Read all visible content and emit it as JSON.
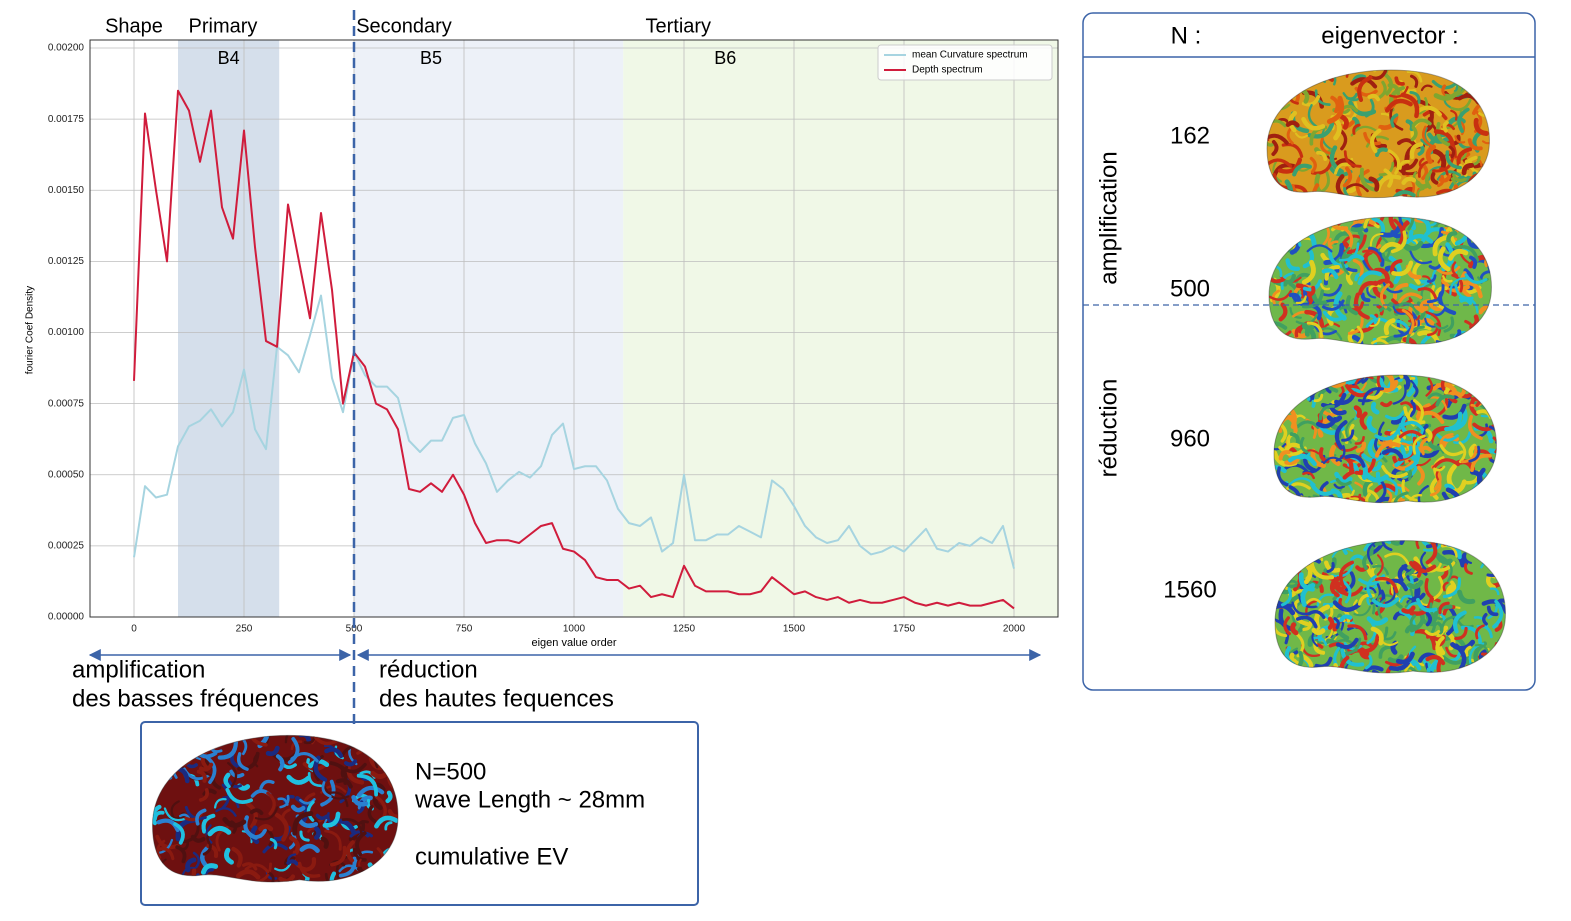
{
  "chart_data": {
    "type": "line",
    "xlabel": "eigen value order",
    "ylabel": "fourier Coef Density",
    "x": [
      0,
      25,
      50,
      75,
      100,
      125,
      150,
      175,
      200,
      225,
      250,
      275,
      300,
      325,
      350,
      375,
      400,
      425,
      450,
      475,
      500,
      525,
      550,
      575,
      600,
      625,
      650,
      675,
      700,
      725,
      750,
      775,
      800,
      825,
      850,
      875,
      900,
      925,
      950,
      975,
      1000,
      1025,
      1050,
      1075,
      1100,
      1125,
      1150,
      1175,
      1200,
      1225,
      1250,
      1275,
      1300,
      1325,
      1350,
      1375,
      1400,
      1425,
      1450,
      1475,
      1500,
      1525,
      1550,
      1575,
      1600,
      1625,
      1650,
      1675,
      1700,
      1725,
      1750,
      1775,
      1800,
      1825,
      1850,
      1875,
      1900,
      1925,
      1950,
      1975,
      2000
    ],
    "series": [
      {
        "name": "mean Curvature spectrum",
        "color": "#a6d4e0",
        "values": [
          0.00021,
          0.00046,
          0.00042,
          0.00043,
          0.0006,
          0.00067,
          0.00069,
          0.00073,
          0.00067,
          0.00072,
          0.00087,
          0.00066,
          0.00059,
          0.00095,
          0.00092,
          0.00086,
          0.00099,
          0.00113,
          0.00084,
          0.00072,
          0.00093,
          0.00085,
          0.00081,
          0.00081,
          0.00077,
          0.00062,
          0.00058,
          0.00062,
          0.00062,
          0.0007,
          0.00071,
          0.00061,
          0.00054,
          0.00044,
          0.00048,
          0.00051,
          0.00049,
          0.00053,
          0.00064,
          0.00068,
          0.00052,
          0.00053,
          0.00053,
          0.00048,
          0.00038,
          0.00033,
          0.00032,
          0.00035,
          0.00023,
          0.00026,
          0.0005,
          0.00027,
          0.00027,
          0.00029,
          0.00029,
          0.00032,
          0.0003,
          0.00028,
          0.00048,
          0.00045,
          0.00039,
          0.00032,
          0.00028,
          0.00026,
          0.00027,
          0.00032,
          0.00025,
          0.00022,
          0.00023,
          0.00025,
          0.00023,
          0.00027,
          0.00031,
          0.00024,
          0.00023,
          0.00026,
          0.00025,
          0.00028,
          0.00026,
          0.00032,
          0.00017
        ]
      },
      {
        "name": "Depth spectrum",
        "color": "#d01c3c",
        "values": [
          0.00083,
          0.00177,
          0.0015,
          0.00125,
          0.00185,
          0.00178,
          0.0016,
          0.00178,
          0.00144,
          0.00133,
          0.00171,
          0.0013,
          0.00097,
          0.00095,
          0.00145,
          0.00125,
          0.00105,
          0.00142,
          0.00115,
          0.00075,
          0.00093,
          0.00088,
          0.00075,
          0.00073,
          0.00066,
          0.00045,
          0.00044,
          0.00047,
          0.00044,
          0.0005,
          0.00043,
          0.00033,
          0.00026,
          0.00027,
          0.00027,
          0.00026,
          0.00029,
          0.00032,
          0.00033,
          0.00024,
          0.00023,
          0.0002,
          0.00014,
          0.00013,
          0.00013,
          0.0001,
          0.00011,
          7e-05,
          8e-05,
          7e-05,
          0.00018,
          0.00011,
          9e-05,
          9e-05,
          9e-05,
          8e-05,
          8e-05,
          9e-05,
          0.00014,
          0.00011,
          8e-05,
          9e-05,
          7e-05,
          6e-05,
          7e-05,
          5e-05,
          6e-05,
          5e-05,
          5e-05,
          6e-05,
          7e-05,
          5e-05,
          4e-05,
          5e-05,
          4e-05,
          5e-05,
          4e-05,
          4e-05,
          5e-05,
          6e-05,
          3e-05
        ]
      }
    ],
    "xlim": [
      -100,
      2100
    ],
    "ylim": [
      0,
      0.00203
    ],
    "xticks": [
      0,
      250,
      500,
      750,
      1000,
      1250,
      1500,
      1750,
      2000
    ],
    "yticks": [
      {
        "value": 0,
        "label": "0.00000"
      },
      {
        "value": 0.00025,
        "label": "0.00025"
      },
      {
        "value": 0.0005,
        "label": "0.00050"
      },
      {
        "value": 0.00075,
        "label": "0.00075"
      },
      {
        "value": 0.001,
        "label": "0.00100"
      },
      {
        "value": 0.00125,
        "label": "0.00125"
      },
      {
        "value": 0.0015,
        "label": "0.00150"
      },
      {
        "value": 0.00175,
        "label": "0.00175"
      },
      {
        "value": 0.002,
        "label": "0.00200"
      }
    ],
    "grid": true,
    "legend": "upper right",
    "bands": [
      {
        "name": "Shape",
        "name_color": "#a8a8a8",
        "from": -100,
        "to": 100
      },
      {
        "name": "Primary",
        "name_color": "#5b7fb5",
        "label": "B4",
        "from": 100,
        "to": 330,
        "color": "#d5dfeb"
      },
      {
        "name": "Secondary",
        "name_color": "#7ba2d2",
        "label": "B5",
        "from": 500,
        "to": 1112,
        "color": "#edf1f8"
      },
      {
        "name": "Tertiary",
        "name_color": "#6cb84c",
        "label": "B6",
        "from": 1112,
        "to": 2100,
        "color": "#f0f8e7"
      }
    ],
    "split": 500
  },
  "annotations": {
    "left": [
      "amplification",
      "des basses fréquences"
    ],
    "right": [
      "réduction",
      "des hautes fequences"
    ]
  },
  "detail": {
    "lines": [
      "N=500",
      "wave Length ~ 28mm",
      "cumulative EV"
    ]
  },
  "panel": {
    "header": [
      "N :",
      "eigenvector :"
    ],
    "sides": [
      "amplification",
      "réduction"
    ],
    "rows": [
      162,
      500,
      960,
      1560
    ]
  }
}
